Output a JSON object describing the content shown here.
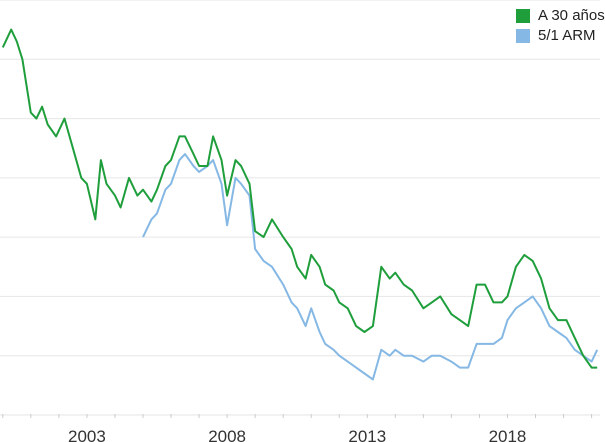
{
  "chart_data": {
    "type": "line",
    "title": "",
    "xlabel": "",
    "ylabel": "",
    "grid": "horizontal",
    "legend_position": "top-right",
    "x_ticks": [
      "2003",
      "2008",
      "2013",
      "2018"
    ],
    "xlim": [
      1999.9,
      2021.3
    ],
    "ylim": [
      2.0,
      9.0
    ],
    "series": [
      {
        "name": "A 30 años",
        "color": "#1f9e3c",
        "x": [
          2000.0,
          2000.3,
          2000.5,
          2000.7,
          2001.0,
          2001.2,
          2001.4,
          2001.6,
          2001.9,
          2002.2,
          2002.5,
          2002.8,
          2003.0,
          2003.3,
          2003.5,
          2003.7,
          2004.0,
          2004.2,
          2004.5,
          2004.8,
          2005.0,
          2005.3,
          2005.5,
          2005.8,
          2006.0,
          2006.3,
          2006.5,
          2006.8,
          2007.0,
          2007.3,
          2007.5,
          2007.8,
          2008.0,
          2008.3,
          2008.5,
          2008.8,
          2009.0,
          2009.3,
          2009.6,
          2010.0,
          2010.3,
          2010.5,
          2010.8,
          2011.0,
          2011.3,
          2011.5,
          2011.8,
          2012.0,
          2012.3,
          2012.6,
          2012.9,
          2013.2,
          2013.5,
          2013.8,
          2014.0,
          2014.3,
          2014.6,
          2015.0,
          2015.3,
          2015.6,
          2016.0,
          2016.3,
          2016.6,
          2016.9,
          2017.2,
          2017.5,
          2017.8,
          2018.0,
          2018.3,
          2018.6,
          2018.9,
          2019.2,
          2019.5,
          2019.8,
          2020.1,
          2020.4,
          2020.7,
          2021.0,
          2021.2
        ],
        "y": [
          8.2,
          8.5,
          8.3,
          8.0,
          7.1,
          7.0,
          7.2,
          6.9,
          6.7,
          7.0,
          6.5,
          6.0,
          5.9,
          5.3,
          6.3,
          5.9,
          5.7,
          5.5,
          6.0,
          5.7,
          5.8,
          5.6,
          5.8,
          6.2,
          6.3,
          6.7,
          6.7,
          6.4,
          6.2,
          6.2,
          6.7,
          6.3,
          5.7,
          6.3,
          6.2,
          5.9,
          5.1,
          5.0,
          5.3,
          5.0,
          4.8,
          4.5,
          4.3,
          4.7,
          4.5,
          4.2,
          4.1,
          3.9,
          3.8,
          3.5,
          3.4,
          3.5,
          4.5,
          4.3,
          4.4,
          4.2,
          4.1,
          3.8,
          3.9,
          4.0,
          3.7,
          3.6,
          3.5,
          4.2,
          4.2,
          3.9,
          3.9,
          4.0,
          4.5,
          4.7,
          4.6,
          4.3,
          3.8,
          3.6,
          3.6,
          3.3,
          3.0,
          2.8,
          2.8
        ]
      },
      {
        "name": "5/1 ARM",
        "color": "#85b8e4",
        "x": [
          2005.0,
          2005.3,
          2005.5,
          2005.8,
          2006.0,
          2006.3,
          2006.5,
          2006.8,
          2007.0,
          2007.3,
          2007.5,
          2007.8,
          2008.0,
          2008.3,
          2008.5,
          2008.8,
          2009.0,
          2009.3,
          2009.6,
          2010.0,
          2010.3,
          2010.5,
          2010.8,
          2011.0,
          2011.3,
          2011.5,
          2011.8,
          2012.0,
          2012.3,
          2012.6,
          2012.9,
          2013.2,
          2013.5,
          2013.8,
          2014.0,
          2014.3,
          2014.6,
          2015.0,
          2015.3,
          2015.6,
          2016.0,
          2016.3,
          2016.6,
          2016.9,
          2017.2,
          2017.5,
          2017.8,
          2018.0,
          2018.3,
          2018.6,
          2018.9,
          2019.2,
          2019.5,
          2019.8,
          2020.1,
          2020.4,
          2020.7,
          2021.0,
          2021.2
        ],
        "y": [
          5.0,
          5.3,
          5.4,
          5.8,
          5.9,
          6.3,
          6.4,
          6.2,
          6.1,
          6.2,
          6.3,
          5.9,
          5.2,
          6.0,
          5.9,
          5.7,
          4.8,
          4.6,
          4.5,
          4.2,
          3.9,
          3.8,
          3.5,
          3.8,
          3.4,
          3.2,
          3.1,
          3.0,
          2.9,
          2.8,
          2.7,
          2.6,
          3.1,
          3.0,
          3.1,
          3.0,
          3.0,
          2.9,
          3.0,
          3.0,
          2.9,
          2.8,
          2.8,
          3.2,
          3.2,
          3.2,
          3.3,
          3.6,
          3.8,
          3.9,
          4.0,
          3.8,
          3.5,
          3.4,
          3.3,
          3.1,
          3.0,
          2.9,
          3.1
        ]
      }
    ]
  },
  "legend": {
    "items": [
      {
        "label": "A 30 años",
        "color": "#1f9e3c"
      },
      {
        "label": "5/1 ARM",
        "color": "#85b8e4"
      }
    ]
  }
}
